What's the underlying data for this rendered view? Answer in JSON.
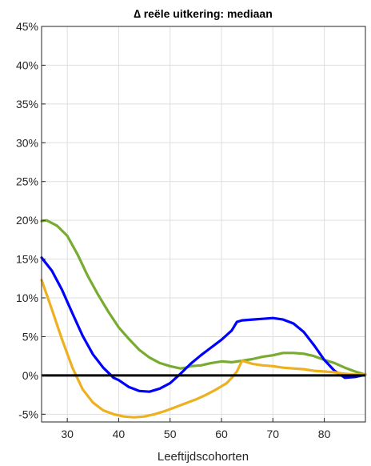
{
  "chart_data": {
    "type": "line",
    "title": "∆ reële uitkering: mediaan",
    "xlabel": "Leeftijdscohorten",
    "ylabel": "",
    "xlim": [
      25,
      88
    ],
    "ylim": [
      -6,
      45
    ],
    "x_ticks": [
      30,
      40,
      50,
      60,
      70,
      80
    ],
    "y_ticks": [
      {
        "value": 45,
        "label": "45%"
      },
      {
        "value": 40,
        "label": "40%"
      },
      {
        "value": 35,
        "label": "35%"
      },
      {
        "value": 30,
        "label": "30%"
      },
      {
        "value": 25,
        "label": "25%"
      },
      {
        "value": 20,
        "label": "20%"
      },
      {
        "value": 15,
        "label": "15%"
      },
      {
        "value": 10,
        "label": "10%"
      },
      {
        "value": 5,
        "label": "5%"
      },
      {
        "value": 0,
        "label": "0%"
      },
      {
        "value": -5,
        "label": "-5%"
      }
    ],
    "grid": true,
    "reference_line": {
      "y": 0,
      "color": "#000000"
    },
    "series": [
      {
        "color": "#77AC30",
        "x": [
          25,
          26,
          28,
          30,
          32,
          34,
          36,
          38,
          40,
          42,
          44,
          46,
          48,
          50,
          52,
          53,
          54,
          56,
          58,
          60,
          62,
          64,
          66,
          68,
          70,
          72,
          74,
          76,
          78,
          80,
          82,
          84,
          86,
          88
        ],
        "y": [
          19.9,
          20.0,
          19.3,
          18.0,
          15.6,
          12.8,
          10.4,
          8.2,
          6.2,
          4.7,
          3.3,
          2.3,
          1.6,
          1.2,
          0.9,
          1.0,
          1.2,
          1.3,
          1.6,
          1.8,
          1.7,
          1.9,
          2.1,
          2.4,
          2.6,
          2.9,
          2.9,
          2.8,
          2.5,
          2.0,
          1.6,
          1.0,
          0.5,
          0.1
        ]
      },
      {
        "color": "#0000FF",
        "x": [
          25,
          27,
          29,
          31,
          33,
          35,
          37,
          39,
          40,
          42,
          44,
          46,
          48,
          50,
          52,
          54,
          56,
          58,
          60,
          62,
          63,
          64,
          66,
          68,
          70,
          72,
          74,
          76,
          78,
          80,
          82,
          84,
          86,
          88
        ],
        "y": [
          15.2,
          13.5,
          11.0,
          8.0,
          5.1,
          2.7,
          1.0,
          -0.3,
          -0.6,
          -1.5,
          -2.0,
          -2.1,
          -1.7,
          -1.0,
          0.2,
          1.5,
          2.6,
          3.6,
          4.6,
          5.8,
          6.9,
          7.1,
          7.2,
          7.3,
          7.4,
          7.2,
          6.7,
          5.6,
          3.9,
          2.0,
          0.6,
          -0.3,
          -0.2,
          0.1
        ]
      },
      {
        "color": "#EDB120",
        "x": [
          25,
          27,
          29,
          31,
          33,
          35,
          37,
          39,
          41,
          43,
          45,
          47,
          49,
          51,
          53,
          55,
          57,
          59,
          61,
          62,
          63,
          64,
          66,
          68,
          70,
          72,
          74,
          76,
          78,
          80,
          82,
          84,
          86,
          88
        ],
        "y": [
          12.3,
          8.5,
          4.6,
          1.0,
          -1.8,
          -3.5,
          -4.5,
          -5.0,
          -5.3,
          -5.4,
          -5.3,
          -5.0,
          -4.6,
          -4.1,
          -3.6,
          -3.1,
          -2.5,
          -1.8,
          -1.0,
          -0.3,
          0.5,
          1.9,
          1.5,
          1.3,
          1.2,
          1.0,
          0.9,
          0.8,
          0.6,
          0.5,
          0.4,
          0.2,
          0.1,
          0.1
        ]
      }
    ]
  }
}
